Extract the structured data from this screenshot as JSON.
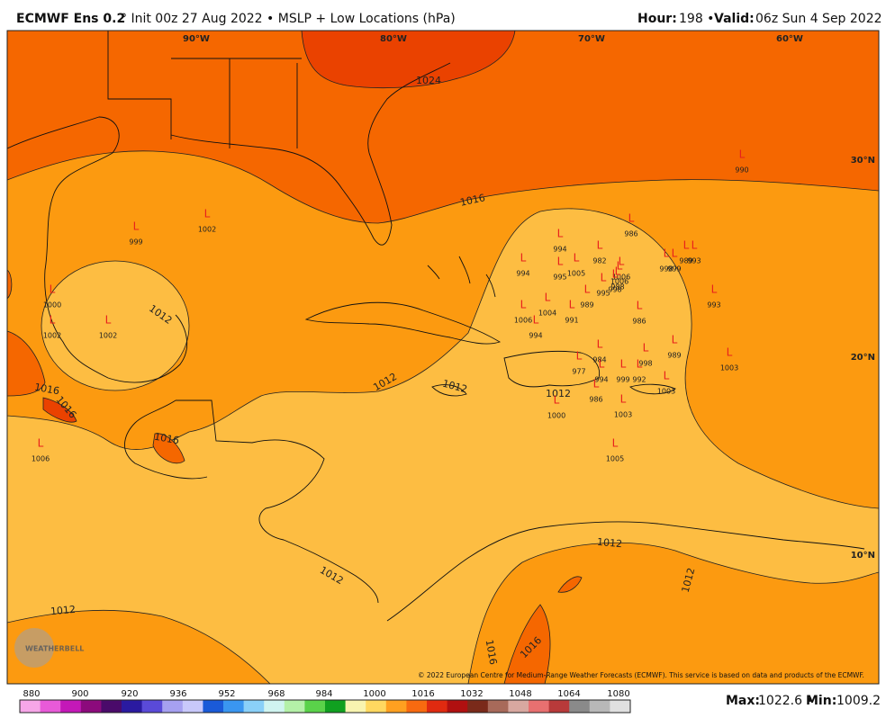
{
  "header": {
    "title": "ECMWF Ens 0.2",
    "subtitle": "° Init 00z 27 Aug 2022 • MSLP + Low Locations (hPa)",
    "hour_label": "Hour:",
    "hour_value": "198 •",
    "valid_label": "Valid:",
    "valid_value": "06z Sun 4 Sep 2022"
  },
  "lon_labels": [
    "90°W",
    "80°W",
    "70°W",
    "60°W"
  ],
  "lat_labels": [
    "30°N",
    "20°N",
    "10°N"
  ],
  "lows": [
    {
      "label": "L",
      "pressure": "990"
    },
    {
      "label": "L",
      "pressure": "999"
    },
    {
      "label": "L",
      "pressure": "1002"
    },
    {
      "label": "L",
      "pressure": "1000"
    },
    {
      "label": "L",
      "pressure": "1002"
    },
    {
      "label": "L",
      "pressure": "1002"
    },
    {
      "label": "L",
      "pressure": "1006"
    },
    {
      "label": "L",
      "pressure": "986"
    },
    {
      "label": "L",
      "pressure": "994"
    },
    {
      "label": "L",
      "pressure": "982"
    },
    {
      "label": "L",
      "pressure": "994"
    },
    {
      "label": "L",
      "pressure": "995"
    },
    {
      "label": "L",
      "pressure": "1005"
    },
    {
      "label": "L",
      "pressure": "1006"
    },
    {
      "label": "L",
      "pressure": "988"
    },
    {
      "label": "L",
      "pressure": "995"
    },
    {
      "label": "L",
      "pressure": "998"
    },
    {
      "label": "L",
      "pressure": "1006"
    },
    {
      "label": "L",
      "pressure": "998"
    },
    {
      "label": "L",
      "pressure": "999"
    },
    {
      "label": "L",
      "pressure": "989"
    },
    {
      "label": "L",
      "pressure": "993"
    },
    {
      "label": "L",
      "pressure": "993"
    },
    {
      "label": "L",
      "pressure": "989"
    },
    {
      "label": "L",
      "pressure": "1004"
    },
    {
      "label": "L",
      "pressure": "1006"
    },
    {
      "label": "L",
      "pressure": "994"
    },
    {
      "label": "L",
      "pressure": "991"
    },
    {
      "label": "L",
      "pressure": "986"
    },
    {
      "label": "L",
      "pressure": "984"
    },
    {
      "label": "L",
      "pressure": "989"
    },
    {
      "label": "L",
      "pressure": "977"
    },
    {
      "label": "L",
      "pressure": "998"
    },
    {
      "label": "L",
      "pressure": "1003"
    },
    {
      "label": "L",
      "pressure": "994"
    },
    {
      "label": "L",
      "pressure": "999"
    },
    {
      "label": "L",
      "pressure": "992"
    },
    {
      "label": "L",
      "pressure": "1003"
    },
    {
      "label": "L",
      "pressure": "986"
    },
    {
      "label": "L",
      "pressure": "1000"
    },
    {
      "label": "L",
      "pressure": "1003"
    },
    {
      "label": "L",
      "pressure": "1005"
    }
  ],
  "contour_labels": [
    "1024",
    "1016",
    "1012",
    "1012",
    "1012",
    "1016",
    "1016",
    "1016",
    "1012",
    "1012",
    "1012",
    "1012",
    "1016",
    "1016",
    "1012"
  ],
  "copyright": "© 2022 European Centre for Medium-Range Weather Forecasts (ECMWF). This service is based on data and products of the ECMWF.",
  "watermark": "WEATHERBELL",
  "colorbar_labels": [
    880,
    900,
    920,
    936,
    952,
    968,
    984,
    1000,
    1016,
    1032,
    1048,
    1064,
    1080
  ],
  "footer": {
    "max_label": "Max:",
    "max_value": "1022.6 •",
    "min_label": "Min:",
    "min_value": "1009.2"
  }
}
